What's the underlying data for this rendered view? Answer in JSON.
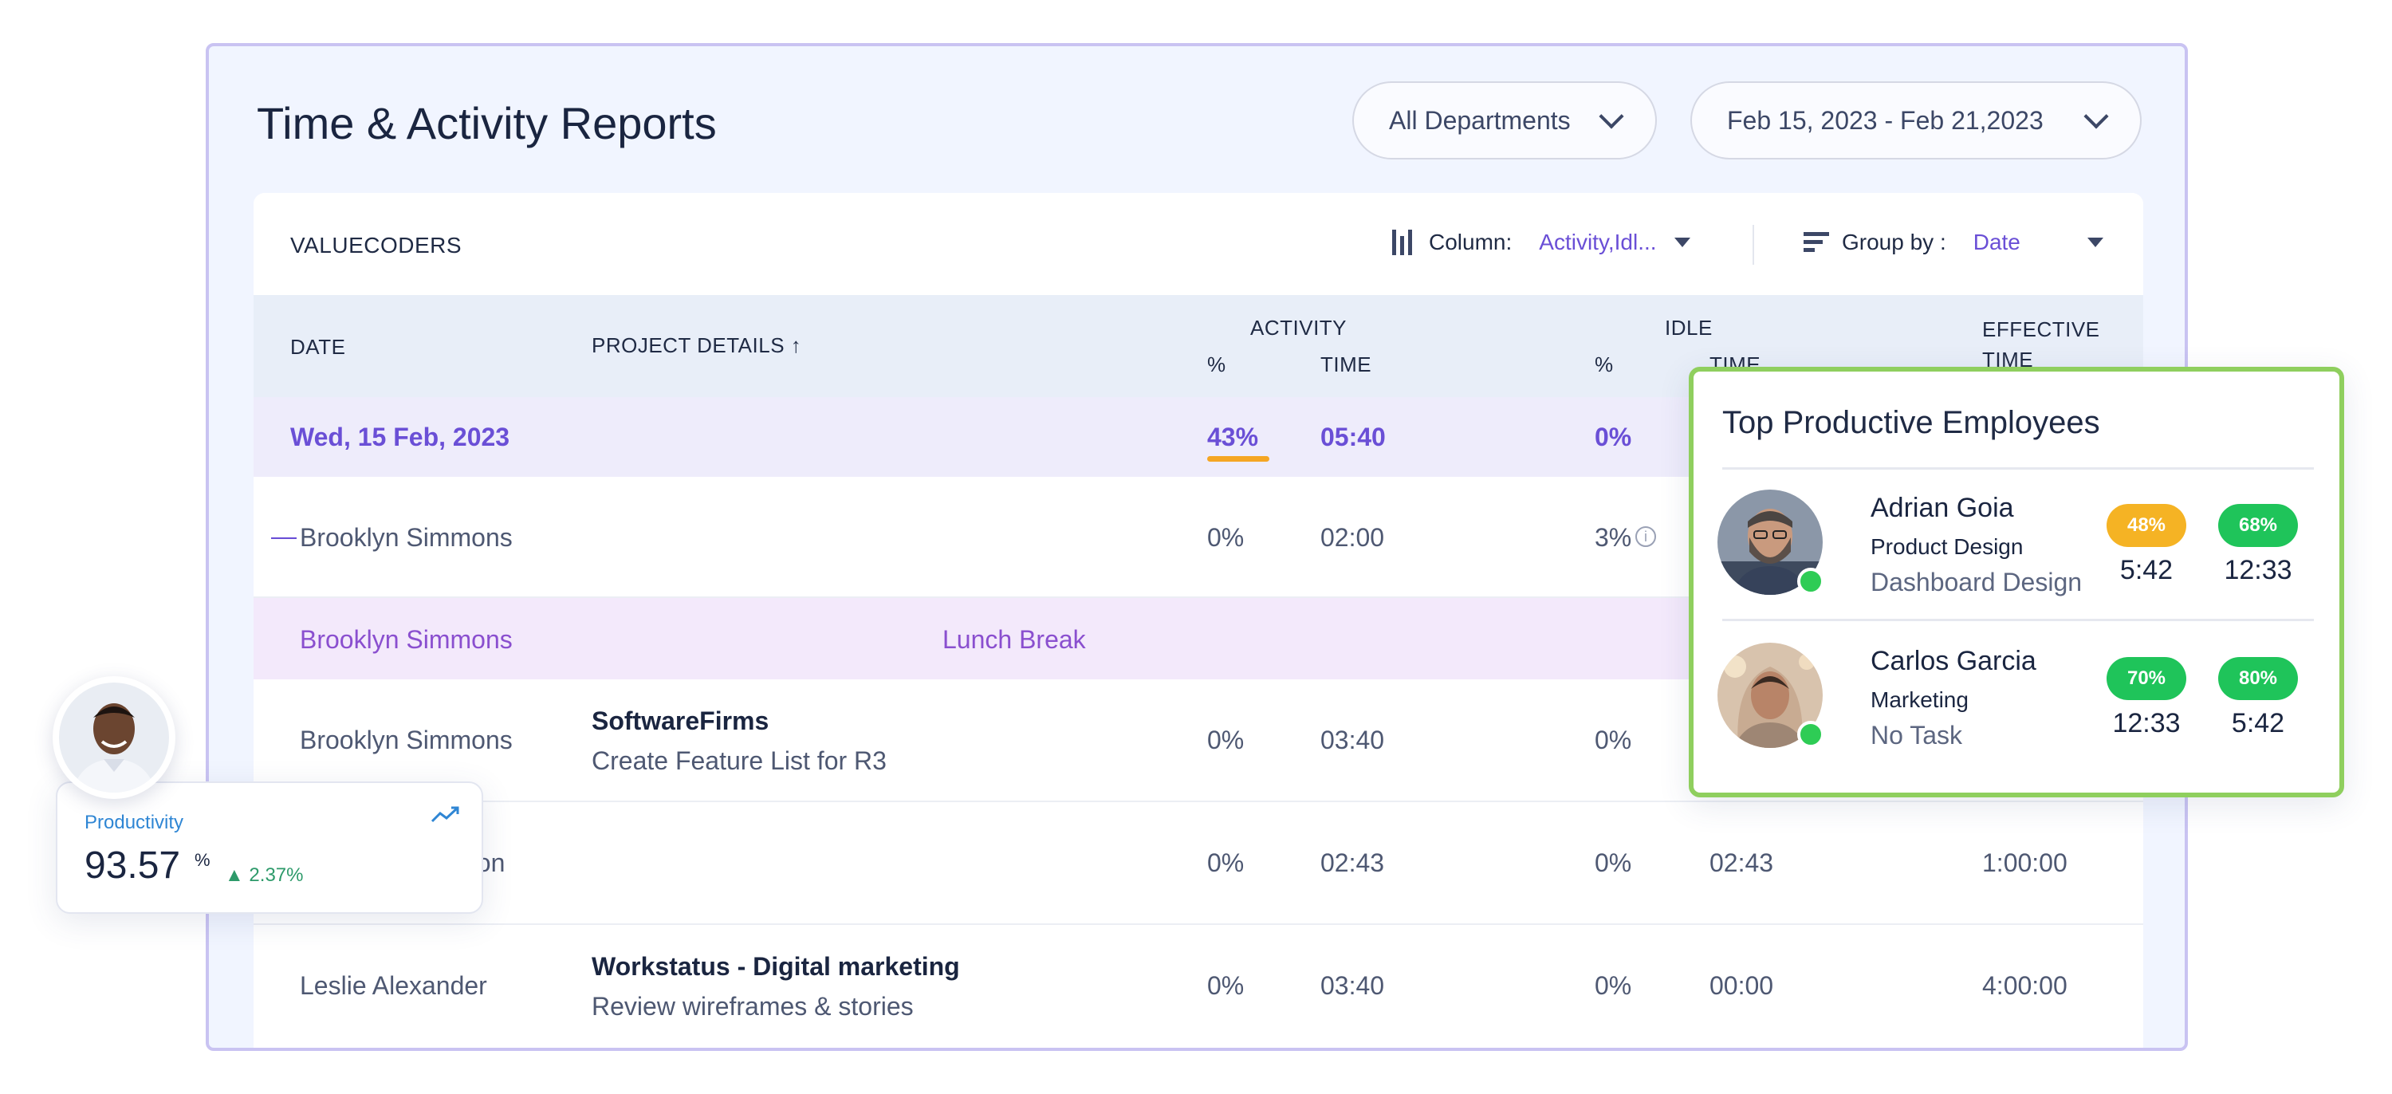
{
  "panel": {
    "title": "Time & Activity Reports",
    "department_filter": "All Departments",
    "date_range": "Feb 15, 2023 - Feb 21,2023"
  },
  "toolbar": {
    "company": "VALUECODERS",
    "column_label": "Column:",
    "column_value": "Activity,Idl...",
    "group_label": "Group by :",
    "group_value": "Date"
  },
  "table": {
    "headers": {
      "date": "DATE",
      "project": "PROJECT DETAILS ↑",
      "activity": "ACTIVITY",
      "activity_pct": "%",
      "activity_time": "TIME",
      "idle": "IDLE",
      "idle_pct": "%",
      "idle_time": "TIME",
      "effective": "EFFECTIVE",
      "effective_time": "TIME"
    },
    "date_group": {
      "date": "Wed, 15 Feb, 2023",
      "activity_pct": "43%",
      "activity_time": "05:40",
      "idle_pct": "0%"
    },
    "rows": [
      {
        "dash": "—",
        "name": "Brooklyn Simmons",
        "activity_pct": "0%",
        "activity_time": "02:00",
        "idle_pct": "3%",
        "info": "i"
      },
      {
        "name": "Brooklyn Simmons",
        "project": "Lunch Break"
      },
      {
        "name": "Brooklyn Simmons",
        "project_title": "SoftwareFirms",
        "project_task": "Create Feature List for R3",
        "activity_pct": "0%",
        "activity_time": "03:40",
        "idle_pct": "0%"
      },
      {
        "name": "nson",
        "activity_pct": "0%",
        "activity_time": "02:43",
        "idle_pct": "0%",
        "idle_time": "02:43",
        "effective_time": "1:00:00"
      },
      {
        "name": "Leslie Alexander",
        "project_title": "Workstatus - Digital marketing",
        "project_task": "Review wireframes & stories",
        "activity_pct": "0%",
        "activity_time": "03:40",
        "idle_pct": "0%",
        "idle_time": "00:00",
        "effective_time": "4:00:00"
      }
    ]
  },
  "top_employees": {
    "title": "Top Productive Employees",
    "items": [
      {
        "name": "Adrian Goia",
        "department": "Product Design",
        "task": "Dashboard Design",
        "badge1": "48%",
        "value1": "5:42",
        "badge1_color": "#f5b324",
        "badge2": "68%",
        "value2": "12:33",
        "badge2_color": "#1fc45a"
      },
      {
        "name": "Carlos Garcia",
        "department": "Marketing",
        "task": "No Task",
        "badge1": "70%",
        "value1": "12:33",
        "badge1_color": "#1fc45a",
        "badge2": "80%",
        "value2": "5:42",
        "badge2_color": "#1fc45a"
      }
    ]
  },
  "productivity": {
    "label": "Productivity",
    "value": "93.57",
    "unit": "%",
    "delta": "▲ 2.37%"
  },
  "colors": {
    "accent": "#6a4fd6",
    "success": "#1fc45a",
    "warning": "#f5b324",
    "card_border": "#8fcf5e"
  }
}
